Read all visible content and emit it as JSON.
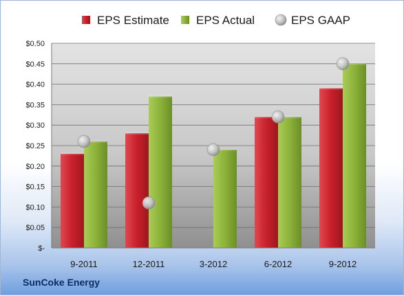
{
  "company": "SunCoke Energy",
  "chart_data": {
    "type": "bar",
    "categories": [
      "9-2011",
      "12-2011",
      "3-2012",
      "6-2012",
      "9-2012"
    ],
    "series": [
      {
        "name": "EPS Estimate",
        "kind": "bar",
        "color": "#c0202a",
        "values": [
          0.23,
          0.28,
          null,
          0.32,
          0.39
        ]
      },
      {
        "name": "EPS Actual",
        "kind": "bar",
        "color": "#8cb23a",
        "values": [
          0.26,
          0.37,
          0.24,
          0.32,
          0.45
        ]
      },
      {
        "name": "EPS GAAP",
        "kind": "scatter",
        "color": "#b8b8b8",
        "values": [
          0.26,
          0.11,
          0.24,
          0.32,
          0.45
        ]
      }
    ],
    "ylim": [
      0,
      0.5
    ],
    "yticks": [
      "$-",
      "$0.05",
      "$0.10",
      "$0.15",
      "$0.20",
      "$0.25",
      "$0.30",
      "$0.35",
      "$0.40",
      "$0.45",
      "$0.50"
    ],
    "grid": true,
    "legend": "top"
  }
}
